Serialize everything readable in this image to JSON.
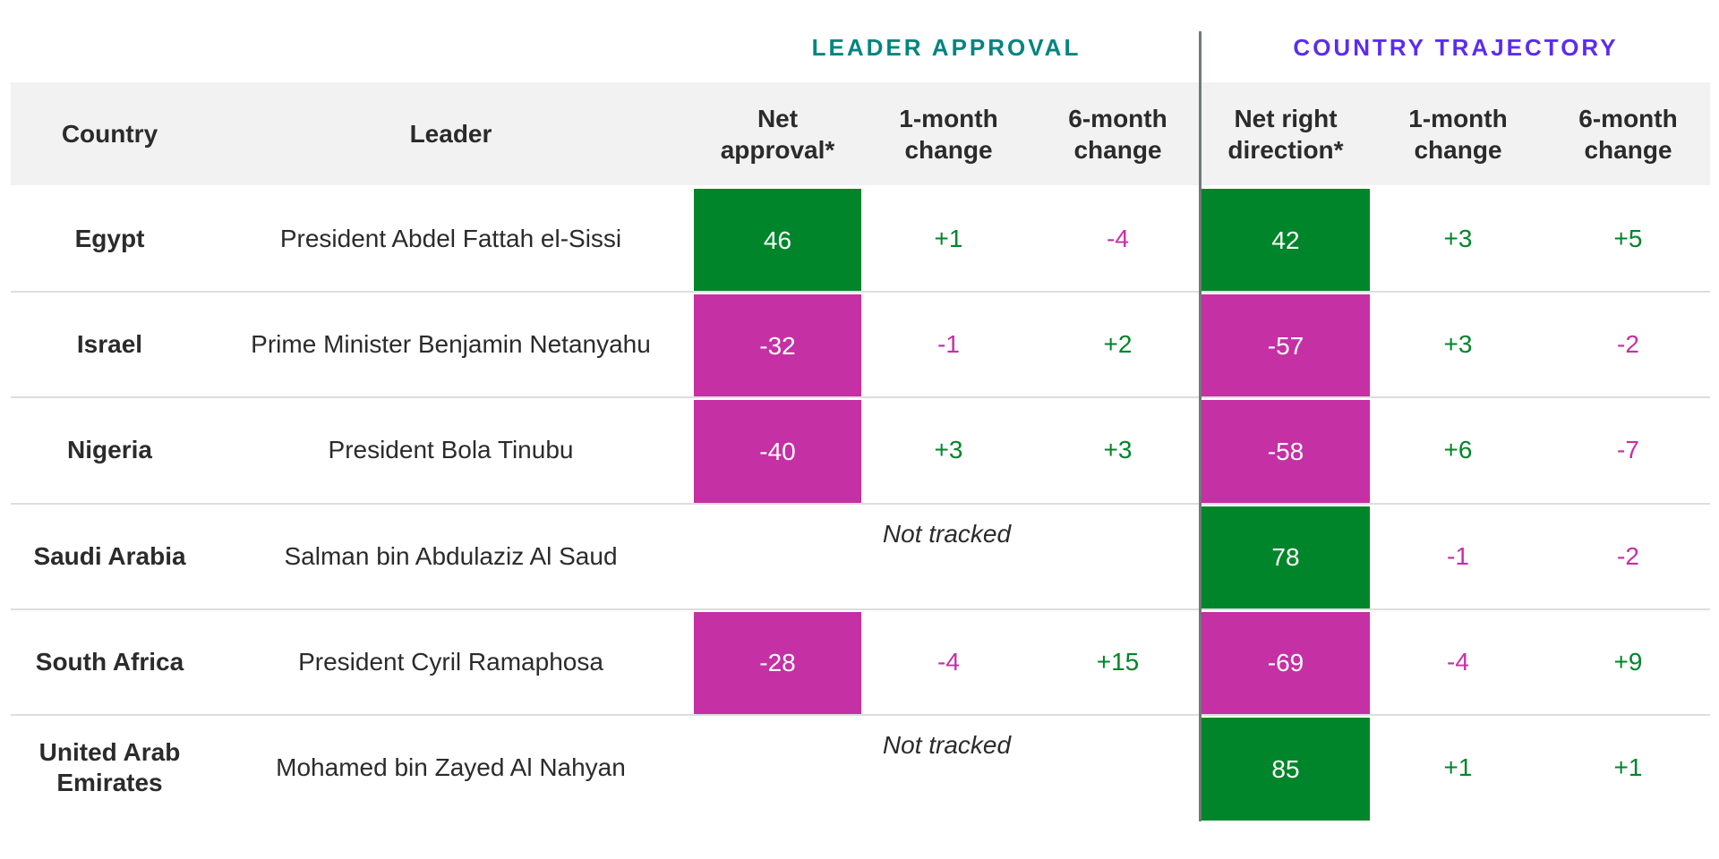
{
  "chart_data": {
    "type": "table",
    "groups": [
      {
        "title": "LEADER APPROVAL",
        "color": "#00857f"
      },
      {
        "title": "COUNTRY TRAJECTORY",
        "color": "#5b2cf2"
      }
    ],
    "columns": [
      "Country",
      "Leader",
      "Net approval*",
      "1-month change",
      "6-month change",
      "Net right direction*",
      "1-month change",
      "6-month change"
    ],
    "not_tracked_label": "Not tracked",
    "rows": [
      {
        "country": "Egypt",
        "leader": "President Abdel Fattah el-Sissi",
        "values": [
          "46",
          "+1",
          "-4",
          "42",
          "+3",
          "+5"
        ]
      },
      {
        "country": "Israel",
        "leader": "Prime Minister Benjamin Netanyahu",
        "values": [
          "-32",
          "-1",
          "+2",
          "-57",
          "+3",
          "-2"
        ]
      },
      {
        "country": "Nigeria",
        "leader": "President Bola Tinubu",
        "values": [
          "-40",
          "+3",
          "+3",
          "-58",
          "+6",
          "-7"
        ]
      },
      {
        "country": "Saudi Arabia",
        "leader": "Salman bin Abdulaziz Al Saud",
        "values": [
          null,
          null,
          null,
          "78",
          "-1",
          "-2"
        ]
      },
      {
        "country": "South Africa",
        "leader": "President Cyril Ramaphosa",
        "values": [
          "-28",
          "-4",
          "+15",
          "-69",
          "-4",
          "+9"
        ]
      },
      {
        "country": "United Arab Emirates",
        "leader": "Mohamed bin Zayed Al Nahyan",
        "values": [
          null,
          null,
          null,
          "85",
          "+1",
          "+1"
        ]
      }
    ],
    "colors": {
      "positive": "#00852a",
      "negative": "#c530a4"
    }
  }
}
